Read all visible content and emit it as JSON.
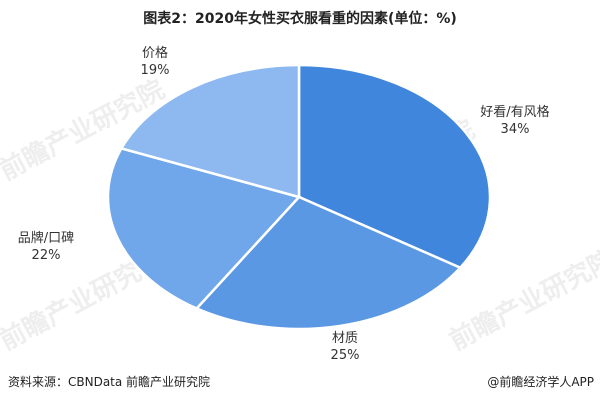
{
  "chart_data": {
    "type": "pie",
    "title": "图表2：2020年女性买衣服看重的因素(单位：%)",
    "start_angle": "12 o'clock",
    "direction": "clockwise",
    "slices": [
      {
        "label": "好看/有风格",
        "value": 34,
        "value_label": "34%",
        "color": "#3f86dc"
      },
      {
        "label": "材质",
        "value": 25,
        "value_label": "25%",
        "color": "#5a98e4"
      },
      {
        "label": "品牌/口碑",
        "value": 22,
        "value_label": "22%",
        "color": "#70a6ea"
      },
      {
        "label": "价格",
        "value": 19,
        "value_label": "19%",
        "color": "#8db9f0"
      }
    ]
  },
  "footer": {
    "source": "资料来源：CBNData 前瞻产业研究院",
    "credit": "@前瞻经济学人APP"
  },
  "watermark": "前瞻产业研究院"
}
